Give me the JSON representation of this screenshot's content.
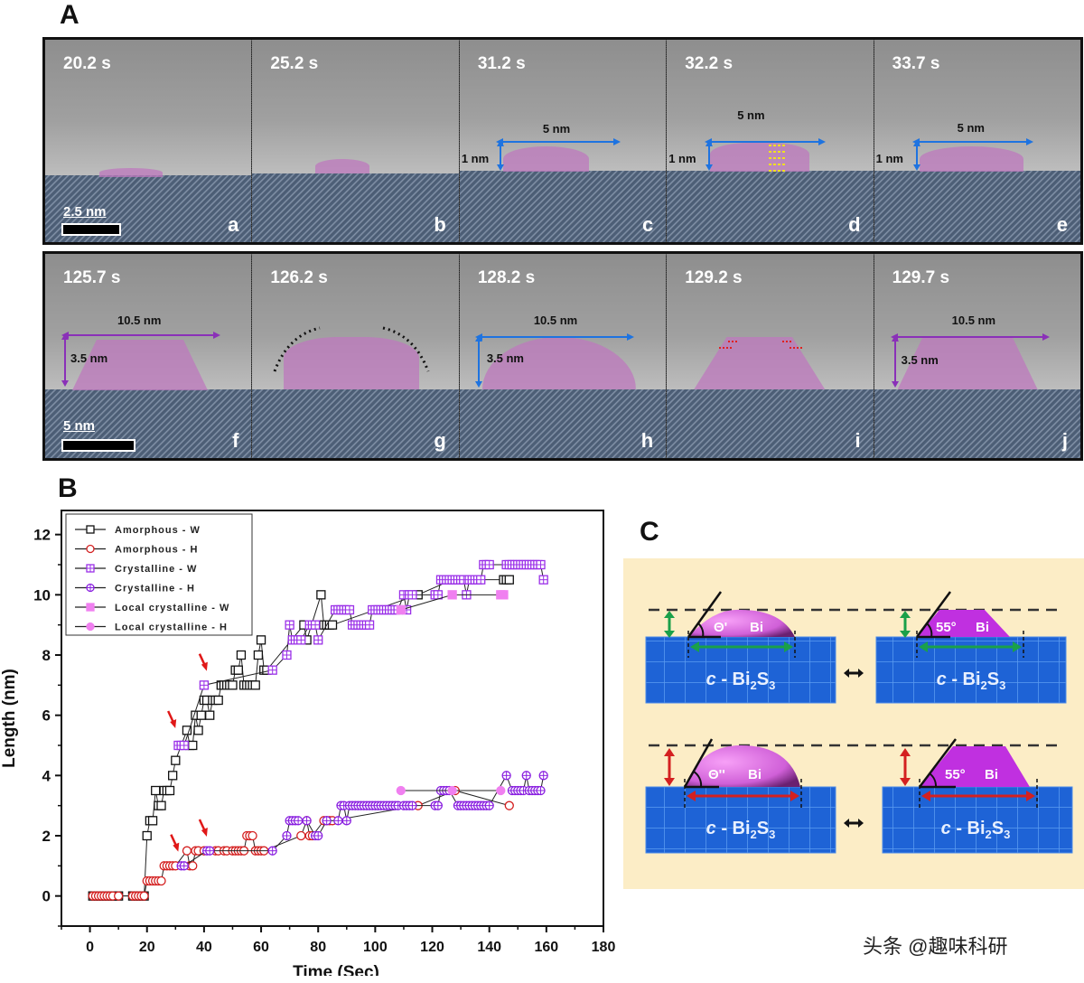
{
  "panel_A": {
    "letter": "A",
    "row1": {
      "scale_bar": "2.5 nm",
      "frames": [
        {
          "time": "20.2 s",
          "label": "a",
          "width_label": "",
          "height_label": ""
        },
        {
          "time": "25.2 s",
          "label": "b",
          "width_label": "",
          "height_label": ""
        },
        {
          "time": "31.2 s",
          "label": "c",
          "width_label": "5 nm",
          "height_label": "1 nm"
        },
        {
          "time": "32.2 s",
          "label": "d",
          "width_label": "5 nm",
          "height_label": "1 nm"
        },
        {
          "time": "33.7 s",
          "label": "e",
          "width_label": "5 nm",
          "height_label": "1 nm"
        }
      ]
    },
    "row2": {
      "scale_bar": "5 nm",
      "frames": [
        {
          "time": "125.7 s",
          "label": "f",
          "width_label": "10.5 nm",
          "height_label": "3.5 nm"
        },
        {
          "time": "126.2 s",
          "label": "g",
          "width_label": "",
          "height_label": ""
        },
        {
          "time": "128.2 s",
          "label": "h",
          "width_label": "10.5 nm",
          "height_label": "3.5 nm"
        },
        {
          "time": "129.2 s",
          "label": "i",
          "width_label": "",
          "height_label": ""
        },
        {
          "time": "129.7 s",
          "label": "j",
          "width_label": "10.5 nm",
          "height_label": "3.5 nm"
        }
      ]
    }
  },
  "panel_B": {
    "letter": "B"
  },
  "panel_C": {
    "letter": "C",
    "top_left": {
      "angle": "Θ'",
      "material": "Bi",
      "substrate": "c - Bi2S3"
    },
    "top_right": {
      "angle": "55°",
      "material": "Bi",
      "substrate": "c - Bi2S3"
    },
    "bottom_left": {
      "angle": "Θ''",
      "material": "Bi",
      "substrate": "c - Bi2S3"
    },
    "bottom_right": {
      "angle": "55°",
      "material": "Bi",
      "substrate": "c - Bi2S3"
    },
    "colors": {
      "background": "#fcedc6",
      "substrate": "#1e63d6",
      "grid": "#5b9cf0",
      "bi_drop": "#e070e8",
      "bi_crystal": "#c030e0",
      "width_arrow_top": "#1aa04a",
      "width_arrow_bottom": "#d42020"
    }
  },
  "watermark": "头条 @趣味科研",
  "chart_data": {
    "type": "scatter",
    "title": "",
    "xlabel": "Time (Sec)",
    "ylabel": "Length (nm)",
    "xlim": [
      -10,
      180
    ],
    "ylim": [
      -1,
      12.8
    ],
    "xticks": [
      0,
      20,
      40,
      60,
      80,
      100,
      120,
      140,
      160,
      180
    ],
    "yticks": [
      0,
      2,
      4,
      6,
      8,
      10,
      12
    ],
    "grid": false,
    "legend_position": "top-left",
    "annotations": [
      {
        "type": "red-arrow",
        "x": 29,
        "y": 5.6
      },
      {
        "type": "red-arrow",
        "x": 40,
        "y": 7.5
      },
      {
        "type": "red-arrow",
        "x": 30,
        "y": 1.5
      },
      {
        "type": "red-arrow",
        "x": 40,
        "y": 2.0
      }
    ],
    "series": [
      {
        "name": "Amorphous - W",
        "marker": "square-open",
        "color": "#111111",
        "x": [
          1,
          2,
          3,
          4,
          5,
          6,
          7,
          8,
          10,
          15,
          16,
          17,
          18,
          19,
          20,
          21,
          22,
          23,
          24,
          25,
          26,
          27,
          28,
          29,
          30,
          34,
          35,
          36,
          37,
          38,
          39,
          40,
          41,
          42,
          43,
          44,
          45,
          46,
          47,
          48,
          49,
          50,
          51,
          52,
          53,
          54,
          55,
          56,
          57,
          58,
          59,
          60,
          61,
          62,
          75,
          76,
          81,
          82,
          83,
          84,
          85,
          115,
          127,
          145,
          146,
          147
        ],
        "y": [
          0,
          0,
          0,
          0,
          0,
          0,
          0,
          0,
          0,
          0,
          0,
          0,
          0,
          0,
          2,
          2.5,
          2.5,
          3.5,
          3,
          3,
          3.5,
          3.5,
          3.5,
          4,
          4.5,
          5.5,
          5,
          5,
          6,
          5.5,
          6,
          6.5,
          6.5,
          6,
          6.5,
          6.5,
          6.5,
          7,
          7,
          7,
          7,
          7,
          7.5,
          7.5,
          8,
          7,
          7,
          7,
          7,
          7,
          8,
          8.5,
          7.5,
          7.5,
          9,
          8.5,
          10,
          9,
          9,
          9,
          9,
          10,
          10.5,
          10.5,
          10.5,
          10.5
        ]
      },
      {
        "name": "Amorphous - H",
        "marker": "circle-open",
        "color": "#d42020",
        "x": [
          1,
          2,
          3,
          4,
          5,
          6,
          7,
          8,
          10,
          15,
          16,
          17,
          18,
          19,
          20,
          21,
          22,
          23,
          24,
          25,
          26,
          27,
          28,
          29,
          30,
          34,
          35,
          36,
          37,
          38,
          40,
          44,
          45,
          47,
          48,
          50,
          51,
          52,
          53,
          54,
          55,
          56,
          57,
          58,
          59,
          60,
          61,
          74,
          76,
          77,
          78,
          82,
          83,
          84,
          85,
          115,
          128,
          147
        ],
        "y": [
          0,
          0,
          0,
          0,
          0,
          0,
          0,
          0,
          0,
          0,
          0,
          0,
          0,
          0,
          0.5,
          0.5,
          0.5,
          0.5,
          0.5,
          0.5,
          1,
          1,
          1,
          1,
          1,
          1.5,
          1,
          1,
          1.5,
          1.5,
          1.5,
          1.5,
          1.5,
          1.5,
          1.5,
          1.5,
          1.5,
          1.5,
          1.5,
          1.5,
          2,
          2,
          2,
          1.5,
          1.5,
          1.5,
          1.5,
          2,
          2.5,
          2,
          2,
          2.5,
          2.5,
          2.5,
          2.5,
          3,
          3.5,
          3
        ]
      },
      {
        "name": "Crystalline - W",
        "marker": "square-crossed",
        "color": "#9b30e8",
        "x": [
          31,
          32,
          33,
          40,
          64,
          69,
          70,
          71,
          72,
          73,
          74,
          77,
          78,
          79,
          80,
          86,
          87,
          88,
          89,
          90,
          91,
          92,
          93,
          94,
          95,
          96,
          97,
          98,
          99,
          100,
          101,
          102,
          103,
          104,
          105,
          106,
          107,
          108,
          110,
          111,
          112,
          113,
          121,
          122,
          123,
          124,
          125,
          126,
          127,
          128,
          129,
          130,
          131,
          132,
          133,
          134,
          135,
          136,
          137,
          138,
          139,
          140,
          146,
          147,
          148,
          149,
          150,
          151,
          152,
          153,
          154,
          155,
          156,
          157,
          158,
          159
        ],
        "y": [
          5,
          5,
          5,
          7,
          7.5,
          8,
          9,
          8.5,
          8.5,
          8.5,
          8.5,
          9,
          9,
          9,
          8.5,
          9.5,
          9.5,
          9.5,
          9.5,
          9.5,
          9.5,
          9,
          9,
          9,
          9,
          9,
          9,
          9,
          9.5,
          9.5,
          9.5,
          9.5,
          9.5,
          9.5,
          9.5,
          9.5,
          9.5,
          9.5,
          10,
          9.5,
          10,
          10,
          10,
          10,
          10.5,
          10.5,
          10.5,
          10.5,
          10.5,
          10.5,
          10.5,
          10.5,
          10.5,
          10,
          10.5,
          10.5,
          10.5,
          10.5,
          10.5,
          11,
          11,
          11,
          11,
          11,
          11,
          11,
          11,
          11,
          11,
          11,
          11,
          11,
          11,
          11,
          11,
          10.5
        ]
      },
      {
        "name": "Crystalline - H",
        "marker": "circle-crossed",
        "color": "#8a20e0",
        "x": [
          32,
          33,
          41,
          42,
          64,
          69,
          70,
          71,
          72,
          73,
          76,
          79,
          80,
          83,
          87,
          88,
          89,
          90,
          91,
          92,
          93,
          94,
          95,
          96,
          97,
          98,
          99,
          100,
          101,
          102,
          103,
          104,
          105,
          106,
          107,
          108,
          110,
          111,
          112,
          113,
          121,
          122,
          123,
          124,
          125,
          126,
          129,
          130,
          131,
          132,
          133,
          134,
          135,
          136,
          137,
          138,
          139,
          140,
          146,
          148,
          149,
          150,
          151,
          152,
          153,
          154,
          155,
          156,
          157,
          158,
          159
        ],
        "y": [
          1,
          1,
          1.5,
          1.5,
          1.5,
          2,
          2.5,
          2.5,
          2.5,
          2.5,
          2.5,
          2,
          2,
          2.5,
          2.5,
          3,
          3,
          2.5,
          3,
          3,
          3,
          3,
          3,
          3,
          3,
          3,
          3,
          3,
          3,
          3,
          3,
          3,
          3,
          3,
          3,
          3,
          3,
          3,
          3,
          3,
          3,
          3,
          3.5,
          3.5,
          3.5,
          3.5,
          3,
          3,
          3,
          3,
          3,
          3,
          3,
          3,
          3,
          3,
          3,
          3,
          4,
          3.5,
          3.5,
          3.5,
          3.5,
          3.5,
          4,
          3.5,
          3.5,
          3.5,
          3.5,
          3.5,
          4
        ]
      },
      {
        "name": "Local crystalline - W",
        "marker": "square-filled",
        "color": "#f080f0",
        "x": [
          109,
          127,
          144,
          145
        ],
        "y": [
          9.5,
          10,
          10,
          10
        ]
      },
      {
        "name": "Local crystalline - H",
        "marker": "circle-filled",
        "color": "#f080f0",
        "x": [
          109,
          127,
          144
        ],
        "y": [
          3.5,
          3.5,
          3.5
        ]
      }
    ]
  }
}
